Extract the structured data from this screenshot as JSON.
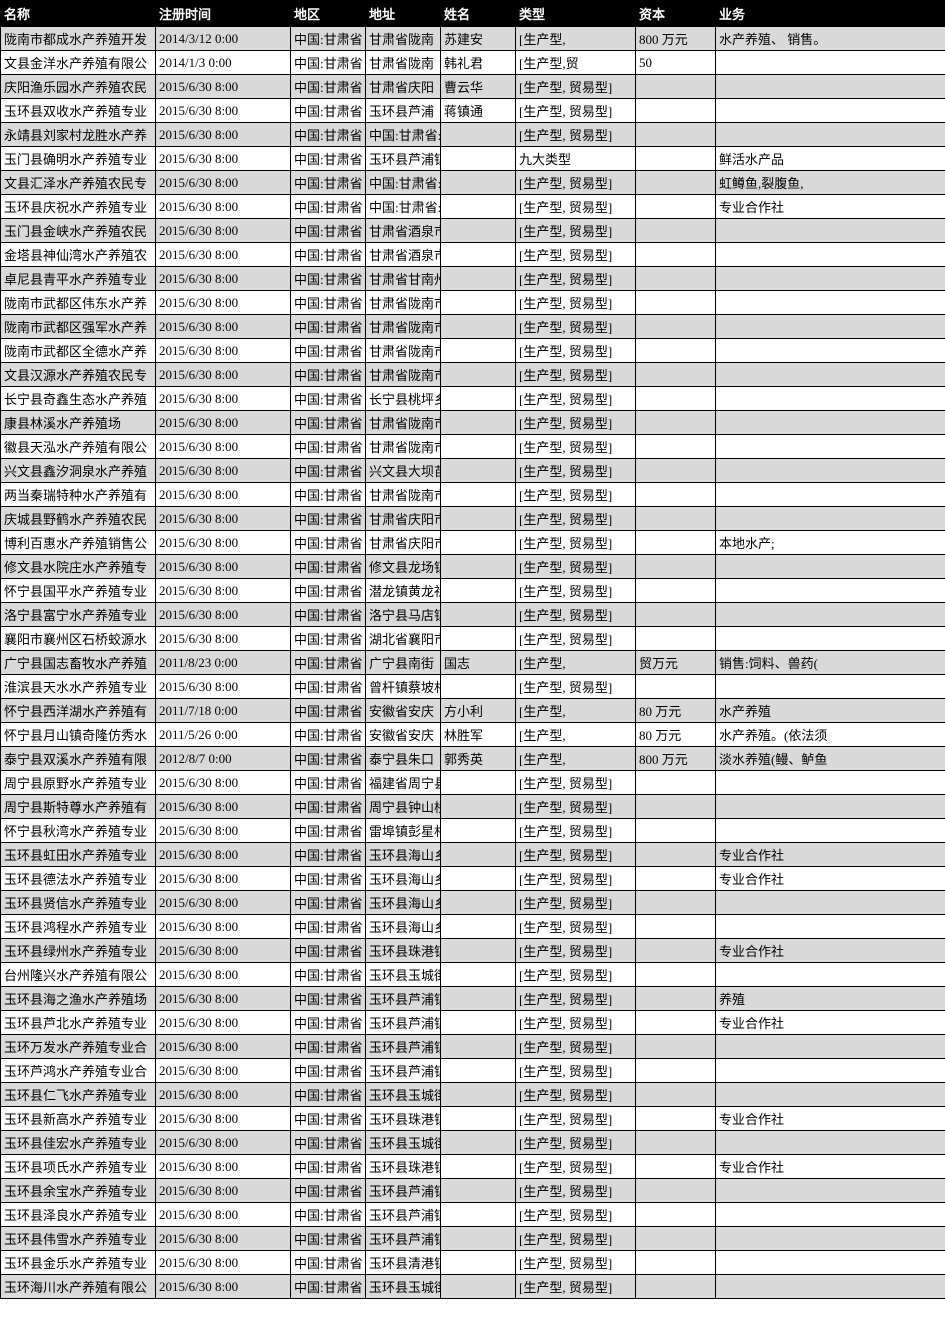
{
  "headers": [
    "名称",
    "注册时间",
    "地区",
    "地址",
    "姓名",
    "类型",
    "资本",
    "业务"
  ],
  "columns_class": [
    "c-name",
    "c-time",
    "c-region",
    "c-addr",
    "c-person",
    "c-type",
    "c-cap",
    "c-biz"
  ],
  "rows": [
    [
      "陇南市都成水产养殖开发",
      "2014/3/12 0:00",
      "中国:甘肃省",
      "甘肃省陇南",
      "苏建安",
      "[生产型,",
      "800 万元",
      "水产养殖、 销售。"
    ],
    [
      "文县金洋水产养殖有限公",
      "2014/1/3 0:00",
      "中国:甘肃省",
      "甘肃省陇南",
      "韩礼君",
      "[生产型,贸",
      "50",
      ""
    ],
    [
      "庆阳渔乐园水产养殖农民",
      "2015/6/30 8:00",
      "中国:甘肃省",
      "甘肃省庆阳",
      "曹云华",
      "[生产型, 贸易型]",
      "",
      ""
    ],
    [
      "玉环县双收水产养殖专业",
      "2015/6/30 8:00",
      "中国:甘肃省",
      "玉环县芦浦",
      "蒋镇通",
      "[生产型, 贸易型]",
      "",
      ""
    ],
    [
      "永靖县刘家村龙胜水产养",
      "2015/6/30 8:00",
      "中国:甘肃省",
      "中国:甘肃省:临夏回族自治州",
      "",
      "[生产型, 贸易型]",
      "",
      ""
    ],
    [
      "玉门县确明水产养殖专业",
      "2015/6/30 8:00",
      "中国:甘肃省",
      "玉环县芦浦镇上岩村",
      "",
      "九大类型",
      "",
      "鲜活水产品"
    ],
    [
      "文县汇泽水产养殖农民专",
      "2015/6/30 8:00",
      "中国:甘肃省",
      "中国:甘肃省:陇南市",
      "",
      "[生产型, 贸易型]",
      "",
      "虹鳟鱼,裂腹鱼,"
    ],
    [
      "玉环县庆祝水产养殖专业",
      "2015/6/30 8:00",
      "中国:甘肃省",
      "中国:甘肃省:庆阳市",
      "",
      "[生产型, 贸易型]",
      "",
      "专业合作社"
    ],
    [
      "玉门县金峡水产养殖农民",
      "2015/6/30 8:00",
      "中国:甘肃省",
      "甘肃省酒泉市玉门市",
      "",
      "[生产型, 贸易型]",
      "",
      ""
    ],
    [
      "金塔县神仙湾水产养殖农",
      "2015/6/30 8:00",
      "中国:甘肃省",
      "甘肃省酒泉市金塔县",
      "",
      "[生产型, 贸易型]",
      "",
      ""
    ],
    [
      "卓尼县青平水产养殖专业",
      "2015/6/30 8:00",
      "中国:甘肃省",
      "甘肃省甘南州卓尼县",
      "",
      "[生产型, 贸易型]",
      "",
      ""
    ],
    [
      "陇南市武都区伟东水产养",
      "2015/6/30 8:00",
      "中国:甘肃省",
      "甘肃省陇南市武都区",
      "",
      "[生产型, 贸易型]",
      "",
      ""
    ],
    [
      "陇南市武都区强军水产养",
      "2015/6/30 8:00",
      "中国:甘肃省",
      "甘肃省陇南市武都区",
      "",
      "[生产型, 贸易型]",
      "",
      ""
    ],
    [
      "陇南市武都区全德水产养",
      "2015/6/30 8:00",
      "中国:甘肃省",
      "甘肃省陇南市武都区",
      "",
      "[生产型, 贸易型]",
      "",
      ""
    ],
    [
      "文县汉源水产养殖农民专",
      "2015/6/30 8:00",
      "中国:甘肃省",
      "甘肃省陇南市文县玉",
      "",
      "[生产型, 贸易型]",
      "",
      ""
    ],
    [
      "长宁县奇鑫生态水产养殖",
      "2015/6/30 8:00",
      "中国:甘肃省",
      "长宁县桃坪乡联盟村",
      "",
      "[生产型, 贸易型]",
      "",
      ""
    ],
    [
      "康县林溪水产养殖场",
      "2015/6/30 8:00",
      "中国:甘肃省",
      "甘肃省陇南市康县阳",
      "",
      "[生产型, 贸易型]",
      "",
      ""
    ],
    [
      "徽县天泓水产养殖有限公",
      "2015/6/30 8:00",
      "中国:甘肃省",
      "甘肃省陇南市徽县城",
      "",
      "[生产型, 贸易型]",
      "",
      ""
    ],
    [
      "兴文县鑫汐洞泉水产养殖",
      "2015/6/30 8:00",
      "中国:甘肃省",
      "兴文县大坝苗族乡建",
      "",
      "[生产型, 贸易型]",
      "",
      ""
    ],
    [
      "两当秦瑞特种水产养殖有",
      "2015/6/30 8:00",
      "中国:甘肃省",
      "甘肃省陇南市两当县",
      "",
      "[生产型, 贸易型]",
      "",
      ""
    ],
    [
      "庆城县野鹤水产养殖农民",
      "2015/6/30 8:00",
      "中国:甘肃省",
      "甘肃省庆阳市庆城县",
      "",
      "[生产型, 贸易型]",
      "",
      ""
    ],
    [
      "博利百惠水产养殖销售公",
      "2015/6/30 8:00",
      "中国:甘肃省",
      "甘肃省庆阳市西峰区",
      "",
      "[生产型, 贸易型]",
      "",
      "本地水产;"
    ],
    [
      "修文县水院庄水产养殖专",
      "2015/6/30 8:00",
      "中国:甘肃省",
      "修文县龙场镇幸福村",
      "",
      "[生产型, 贸易型]",
      "",
      ""
    ],
    [
      "怀宁县国平水产养殖专业",
      "2015/6/30 8:00",
      "中国:甘肃省",
      "潜龙镇黄龙社区",
      "",
      "[生产型, 贸易型]",
      "",
      ""
    ],
    [
      "洛宁县富宁水产养殖专业",
      "2015/6/30 8:00",
      "中国:甘肃省",
      "洛宁县马店镇马西村",
      "",
      "[生产型, 贸易型]",
      "",
      ""
    ],
    [
      "襄阳市襄州区石桥蛟源水",
      "2015/6/30 8:00",
      "中国:甘肃省",
      "湖北省襄阳市襄州区",
      "",
      "[生产型, 贸易型]",
      "",
      ""
    ],
    [
      "广宁县国志畜牧水产养殖",
      "2011/8/23 0:00",
      "中国:甘肃省",
      "广宁县南街",
      "国志",
      "[生产型,",
      "贸万元",
      "销售:饲料、兽药("
    ],
    [
      "淮滨县天水水产养殖专业",
      "2015/6/30 8:00",
      "中国:甘肃省",
      "曾杆镇蔡坡村",
      "",
      "[生产型, 贸易型]",
      "",
      ""
    ],
    [
      "怀宁县西洋湖水产养殖有",
      "2011/7/18 0:00",
      "中国:甘肃省",
      "安徽省安庆",
      "方小利",
      "[生产型,",
      "80 万元",
      "水产养殖"
    ],
    [
      "怀宁县月山镇奇隆仿秀水",
      "2011/5/26 0:00",
      "中国:甘肃省",
      "安徽省安庆",
      "林胜军",
      "[生产型,",
      "80 万元",
      "水产养殖。(依法须"
    ],
    [
      "泰宁县双溪水产养殖有限",
      "2012/8/7 0:00",
      "中国:甘肃省",
      "泰宁县朱口",
      "郭秀英",
      "[生产型,",
      "800 万元",
      "淡水养殖(鳗、鲈鱼"
    ],
    [
      "周宁县原野水产养殖专业",
      "2015/6/30 8:00",
      "中国:甘肃省",
      "福建省周宁县蒲源镇",
      "",
      "[生产型, 贸易型]",
      "",
      ""
    ],
    [
      "周宁县斯特尊水产养殖有",
      "2015/6/30 8:00",
      "中国:甘肃省",
      "周宁县钟山桥电站水",
      "",
      "[生产型, 贸易型]",
      "",
      ""
    ],
    [
      "怀宁县秋湾水产养殖专业",
      "2015/6/30 8:00",
      "中国:甘肃省",
      "雷埠镇彭星村",
      "",
      "[生产型, 贸易型]",
      "",
      ""
    ],
    [
      "玉环县虹田水产养殖专业",
      "2015/6/30 8:00",
      "中国:甘肃省",
      "玉环县海山乡虹田村",
      "",
      "[生产型, 贸易型]",
      "",
      "专业合作社"
    ],
    [
      "玉环县德法水产养殖专业",
      "2015/6/30 8:00",
      "中国:甘肃省",
      "玉环县海山乡虹田村",
      "",
      "[生产型, 贸易型]",
      "",
      "专业合作社"
    ],
    [
      "玉环县贤信水产养殖专业",
      "2015/6/30 8:00",
      "中国:甘肃省",
      "玉环县海山乡大岙村",
      "",
      "[生产型, 贸易型]",
      "",
      ""
    ],
    [
      "玉环县鸿程水产养殖专业",
      "2015/6/30 8:00",
      "中国:甘肃省",
      "玉环县海山乡碴头村",
      "",
      "[生产型, 贸易型]",
      "",
      ""
    ],
    [
      "玉环县绿州水产养殖专业",
      "2015/6/30 8:00",
      "中国:甘肃省",
      "玉环县珠港镇西滩村",
      "",
      "[生产型, 贸易型]",
      "",
      "专业合作社"
    ],
    [
      "台州隆兴水产养殖有限公",
      "2015/6/30 8:00",
      "中国:甘肃省",
      "玉环县玉城街道西滩",
      "",
      "[生产型, 贸易型]",
      "",
      ""
    ],
    [
      "玉环县海之渔水产养殖场",
      "2015/6/30 8:00",
      "中国:甘肃省",
      "玉环县芦浦镇分水村",
      "",
      "[生产型, 贸易型]",
      "",
      "养殖"
    ],
    [
      "玉环县芦北水产养殖专业",
      "2015/6/30 8:00",
      "中国:甘肃省",
      "玉环县芦浦镇尖山村",
      "",
      "[生产型, 贸易型]",
      "",
      "专业合作社"
    ],
    [
      "玉环万发水产养殖专业合",
      "2015/6/30 8:00",
      "中国:甘肃省",
      "玉环县芦浦镇红山村",
      "",
      "[生产型, 贸易型]",
      "",
      ""
    ],
    [
      "玉环芦鸿水产养殖专业合",
      "2015/6/30 8:00",
      "中国:甘肃省",
      "玉环县芦浦镇尖山村",
      "",
      "[生产型, 贸易型]",
      "",
      ""
    ],
    [
      "玉环县仁飞水产养殖专业",
      "2015/6/30 8:00",
      "中国:甘肃省",
      "玉环县玉城街道南山",
      "",
      "[生产型, 贸易型]",
      "",
      ""
    ],
    [
      "玉环县新高水产养殖专业",
      "2015/6/30 8:00",
      "中国:甘肃省",
      "玉环县珠港镇县东村",
      "",
      "[生产型, 贸易型]",
      "",
      "专业合作社"
    ],
    [
      "玉环县佳宏水产养殖专业",
      "2015/6/30 8:00",
      "中国:甘肃省",
      "玉环县玉城街道三合",
      "",
      "[生产型, 贸易型]",
      "",
      ""
    ],
    [
      "玉环县项氏水产养殖专业",
      "2015/6/30 8:00",
      "中国:甘肃省",
      "玉环县珠港镇沙岙村",
      "",
      "[生产型, 贸易型]",
      "",
      "专业合作社"
    ],
    [
      "玉环县余宝水产养殖专业",
      "2015/6/30 8:00",
      "中国:甘肃省",
      "玉环县芦浦镇隔岭村",
      "",
      "[生产型, 贸易型]",
      "",
      ""
    ],
    [
      "玉环县泽良水产养殖专业",
      "2015/6/30 8:00",
      "中国:甘肃省",
      "玉环县芦浦镇隔岭村",
      "",
      "[生产型, 贸易型]",
      "",
      ""
    ],
    [
      "玉环县伟雪水产养殖专业",
      "2015/6/30 8:00",
      "中国:甘肃省",
      "玉环县芦浦镇隔岭村",
      "",
      "[生产型, 贸易型]",
      "",
      ""
    ],
    [
      "玉环县金乐水产养殖专业",
      "2015/6/30 8:00",
      "中国:甘肃省",
      "玉环县清港镇台山村",
      "",
      "[生产型, 贸易型]",
      "",
      ""
    ],
    [
      "玉环海川水产养殖有限公",
      "2015/6/30 8:00",
      "中国:甘肃省",
      "玉环县玉城街道白岩",
      "",
      "[生产型, 贸易型]",
      "",
      ""
    ]
  ],
  "style": {
    "header_bg": "#000000",
    "header_fg": "#ffffff",
    "row_even_bg": "#d9d9d9",
    "row_odd_bg": "#ffffff",
    "border_color": "#000000",
    "font_family": "SimSun",
    "font_size_pt": 10
  }
}
